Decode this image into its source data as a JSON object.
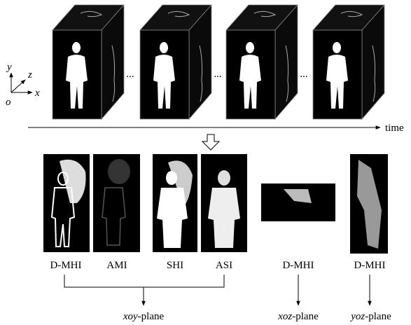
{
  "axes": {
    "y": "y",
    "z": "z",
    "o": "o",
    "x": "x"
  },
  "time_label": "time",
  "separators": [
    "...",
    "...",
    "..."
  ],
  "images": [
    {
      "label": "D-MHI"
    },
    {
      "label": "AMI"
    },
    {
      "label": "SHI"
    },
    {
      "label": "ASI"
    },
    {
      "label": "D-MHI"
    },
    {
      "label": "D-MHI"
    }
  ],
  "planes": [
    {
      "italic": "xoy",
      "text": "-plane"
    },
    {
      "italic": "xoz",
      "text": "-plane"
    },
    {
      "italic": "yoz",
      "text": "-plane"
    }
  ]
}
